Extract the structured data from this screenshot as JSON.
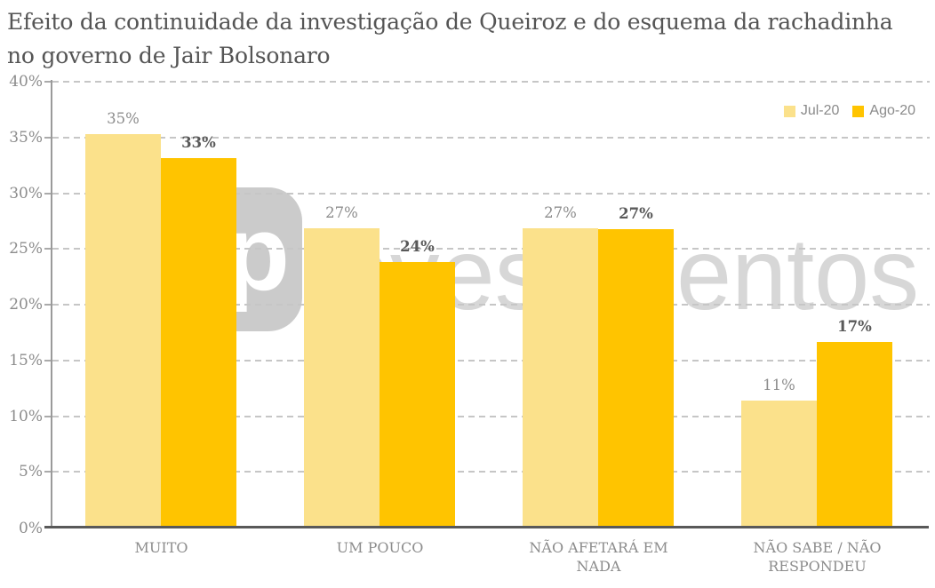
{
  "title": "Efeito da continuidade da investigação de Queiroz e do esquema da rachadinha no governo de Jair Bolsonaro",
  "title_lines": [
    "Efeito da continuidade da investigação de Queiroz e do esquema da rachadinha",
    "no governo de Jair Bolsonaro"
  ],
  "watermark": {
    "brand": "xp investimentos",
    "logo_text": "xp",
    "word": "investimentos"
  },
  "colors": {
    "background": "#FFFFFF",
    "title_text": "#555555",
    "axis_label_text": "#8C8C8C",
    "gridline": "#C6C6C6",
    "y_axis_line": "#9A9A9A",
    "baseline": "#595959",
    "jul_bar": "#FBE18B",
    "ago_bar": "#FFC400",
    "watermark_logo": "#CBCBCB",
    "watermark_text": "#D7D7D7"
  },
  "chart_data": {
    "type": "bar",
    "title": "Efeito da continuidade da investigação de Queiroz e do esquema da rachadinha no governo de Jair Bolsonaro",
    "categories": [
      "MUITO",
      "UM POUCO",
      "NÃO AFETARÁ EM NADA",
      "NÃO SABE / NÃO RESPONDEU"
    ],
    "series": [
      {
        "name": "Jul-20",
        "color": "#FBE18B",
        "values": [
          35,
          27,
          27,
          11
        ],
        "data_labels": [
          "35%",
          "27%",
          "27%",
          "11%"
        ],
        "rendered_heights_pct": [
          35.1,
          26.7,
          26.7,
          11.2
        ],
        "data_label_color": "#8C8C8C",
        "data_label_weight": "normal"
      },
      {
        "name": "Ago-20",
        "color": "#FFC400",
        "values": [
          33,
          24,
          27,
          17
        ],
        "data_labels": [
          "33%",
          "24%",
          "27%",
          "17%"
        ],
        "rendered_heights_pct": [
          33.0,
          23.7,
          26.6,
          16.5
        ],
        "data_label_color": "#595959",
        "data_label_weight": "bold"
      }
    ],
    "xlabel": "",
    "ylabel": "",
    "ylim": [
      0,
      40
    ],
    "ytick_step": 5,
    "ytick_suffix": "%",
    "y_tick_labels": [
      "0%",
      "5%",
      "10%",
      "15%",
      "20%",
      "25%",
      "30%",
      "35%",
      "40%"
    ],
    "grid": "horizontal-dashed",
    "legend_position": "top-right",
    "value_suffix": "%"
  }
}
